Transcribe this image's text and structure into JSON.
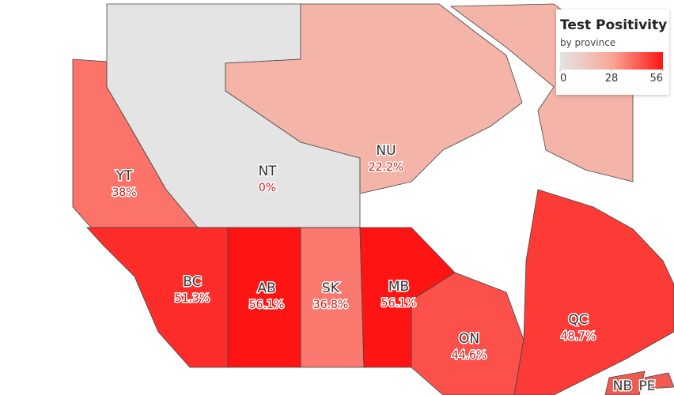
{
  "chart_data": {
    "type": "choropleth",
    "title": "Test Positivity",
    "subtitle": "by province",
    "categories": [
      "YT",
      "NT",
      "NU",
      "BC",
      "AB",
      "SK",
      "MB",
      "ON",
      "QC",
      "NB",
      "PE"
    ],
    "values": [
      38,
      0,
      22.2,
      51.3,
      56.1,
      36.8,
      56.1,
      44.6,
      48.7,
      null,
      null
    ],
    "value_labels": [
      "38%",
      "0%",
      "22.2%",
      "51.3%",
      "56.1%",
      "36.8%",
      "56.1%",
      "44.6%",
      "48.7%",
      null,
      null
    ],
    "clim": [
      0,
      56
    ],
    "cticks": [
      0,
      28,
      56
    ],
    "color_stops": [
      "#e4e4e4",
      "#f8a898",
      "#ff1414"
    ]
  }
}
